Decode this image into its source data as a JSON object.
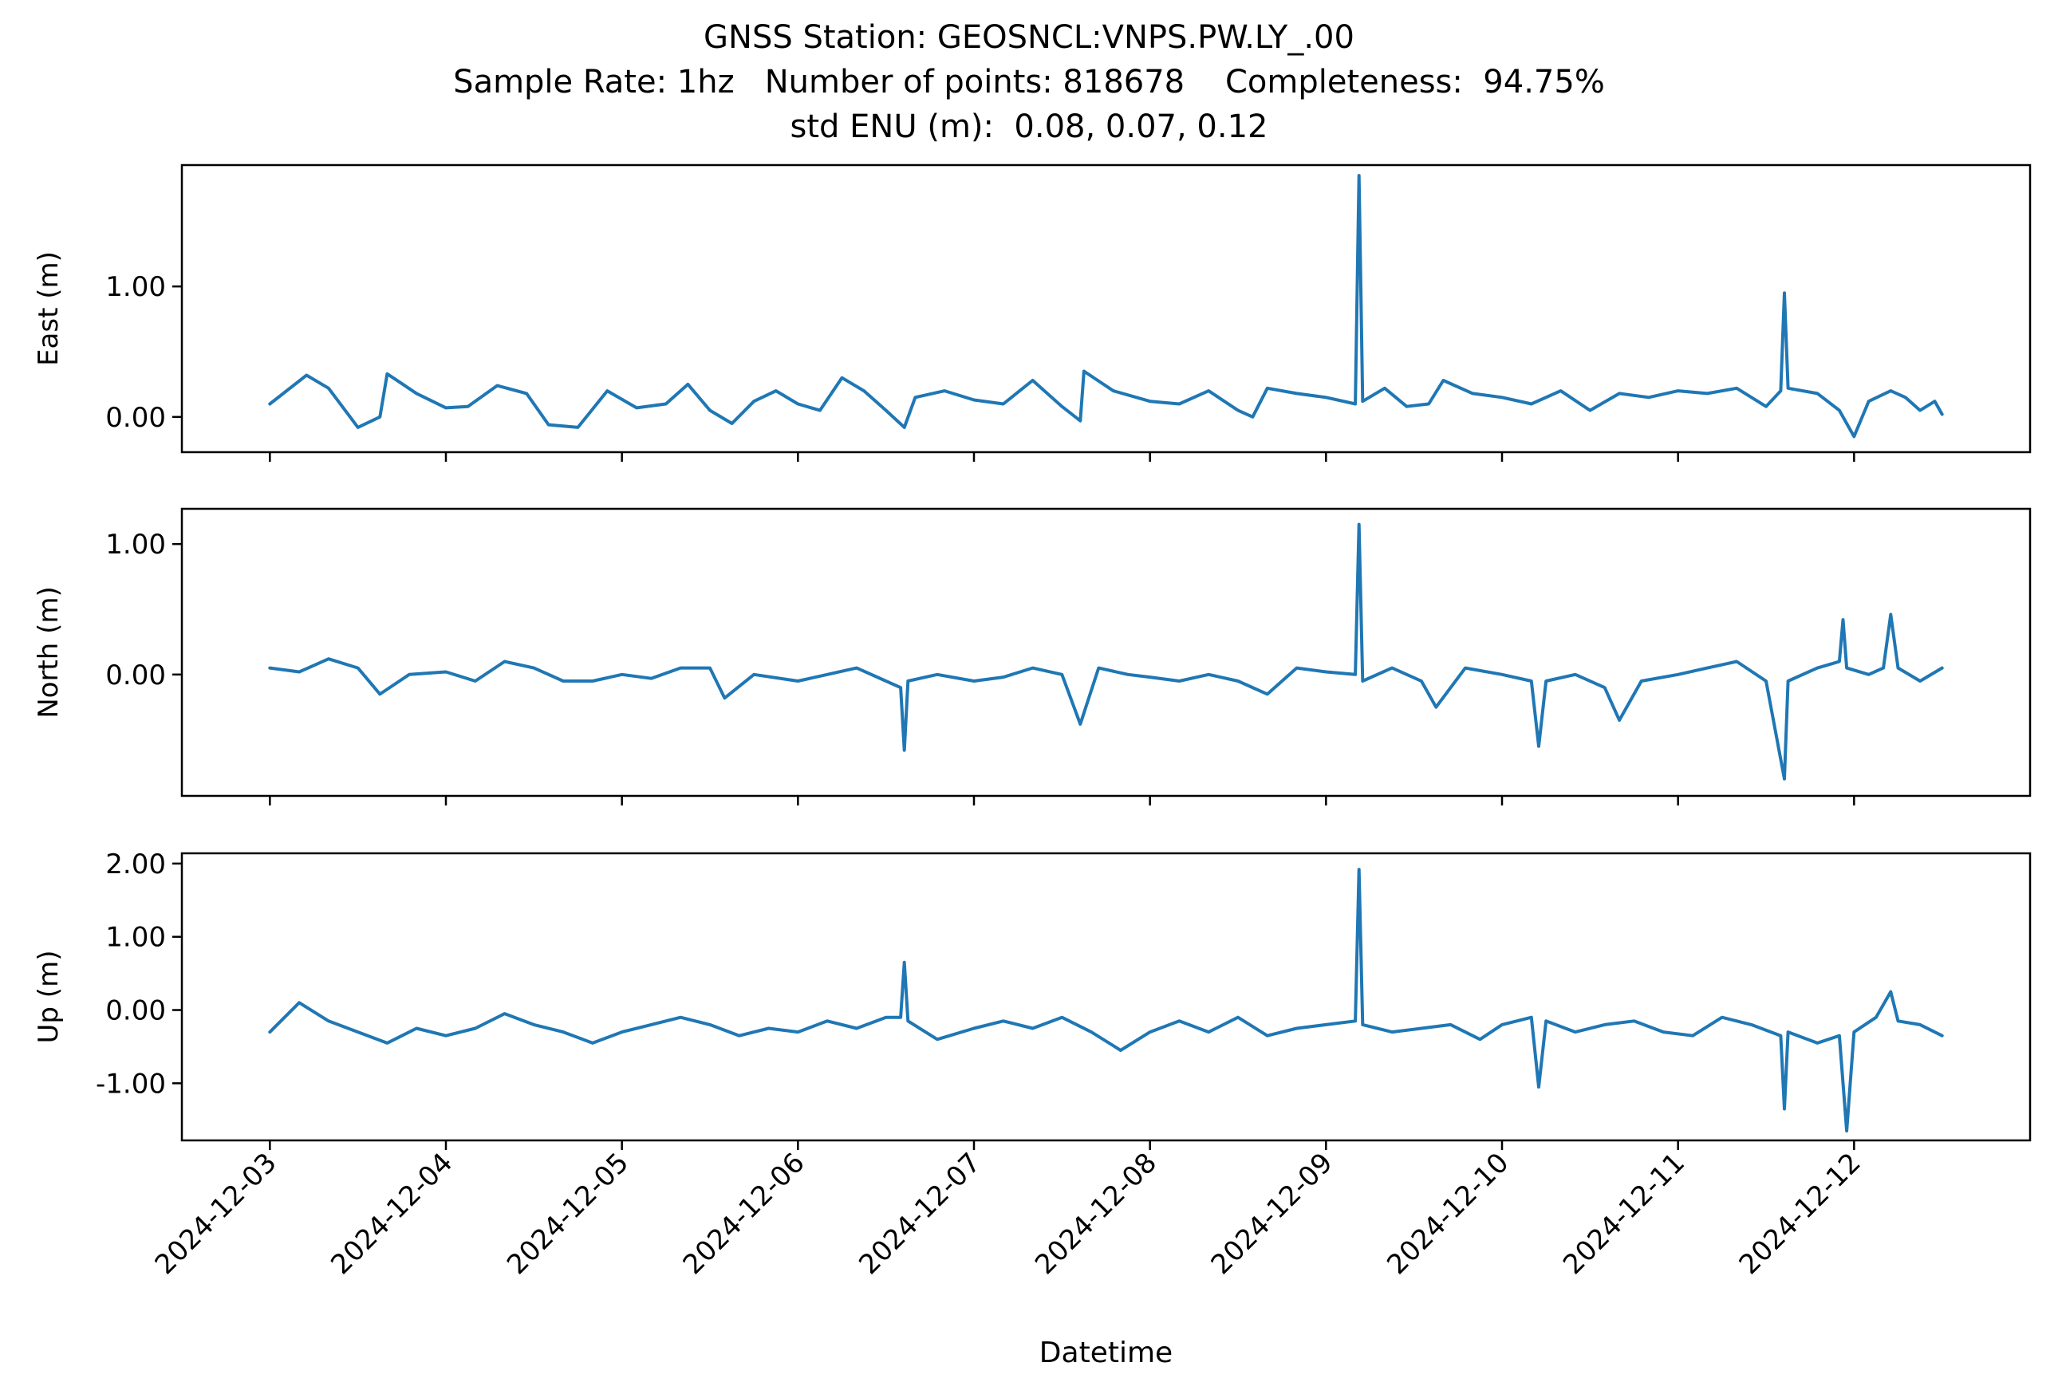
{
  "chart_data": {
    "type": "line",
    "title": "GNSS Station: GEOSNCL:VNPS.PW.LY_.00",
    "subtitle": "Sample Rate: 1hz   Number of points: 818678    Completeness:  94.75%",
    "subtitle2": "std ENU (m):  0.08, 0.07, 0.12",
    "xlabel": "Datetime",
    "x_ticks": [
      "2024-12-03",
      "2024-12-04",
      "2024-12-05",
      "2024-12-06",
      "2024-12-07",
      "2024-12-08",
      "2024-12-09",
      "2024-12-10",
      "2024-12-11",
      "2024-12-12"
    ],
    "xlim": [
      "2024-12-02T12:00",
      "2024-12-13T00:00"
    ],
    "line_color": "#1f77b4",
    "grid": false,
    "panels": [
      {
        "ylabel": "East (m)",
        "ylim": [
          -0.27,
          1.93
        ],
        "yticks": [
          0.0,
          1.0
        ],
        "yticklabels": [
          "0.00",
          "1.00"
        ],
        "series": [
          {
            "x": "2024-12-03T00:00",
            "y": 0.1
          },
          {
            "x": "2024-12-03T05:00",
            "y": 0.32
          },
          {
            "x": "2024-12-03T08:00",
            "y": 0.22
          },
          {
            "x": "2024-12-03T12:00",
            "y": -0.08
          },
          {
            "x": "2024-12-03T15:00",
            "y": 0.0
          },
          {
            "x": "2024-12-03T16:00",
            "y": 0.33
          },
          {
            "x": "2024-12-03T20:00",
            "y": 0.18
          },
          {
            "x": "2024-12-04T00:00",
            "y": 0.07
          },
          {
            "x": "2024-12-04T03:00",
            "y": 0.08
          },
          {
            "x": "2024-12-04T07:00",
            "y": 0.24
          },
          {
            "x": "2024-12-04T11:00",
            "y": 0.18
          },
          {
            "x": "2024-12-04T14:00",
            "y": -0.06
          },
          {
            "x": "2024-12-04T18:00",
            "y": -0.08
          },
          {
            "x": "2024-12-04T22:00",
            "y": 0.2
          },
          {
            "x": "2024-12-05T02:00",
            "y": 0.07
          },
          {
            "x": "2024-12-05T06:00",
            "y": 0.1
          },
          {
            "x": "2024-12-05T09:00",
            "y": 0.25
          },
          {
            "x": "2024-12-05T12:00",
            "y": 0.05
          },
          {
            "x": "2024-12-05T15:00",
            "y": -0.05
          },
          {
            "x": "2024-12-05T18:00",
            "y": 0.12
          },
          {
            "x": "2024-12-05T21:00",
            "y": 0.2
          },
          {
            "x": "2024-12-06T00:00",
            "y": 0.1
          },
          {
            "x": "2024-12-06T03:00",
            "y": 0.05
          },
          {
            "x": "2024-12-06T06:00",
            "y": 0.3
          },
          {
            "x": "2024-12-06T09:00",
            "y": 0.2
          },
          {
            "x": "2024-12-06T12:00",
            "y": 0.05
          },
          {
            "x": "2024-12-06T14:30",
            "y": -0.08
          },
          {
            "x": "2024-12-06T16:00",
            "y": 0.15
          },
          {
            "x": "2024-12-06T20:00",
            "y": 0.2
          },
          {
            "x": "2024-12-07T00:00",
            "y": 0.13
          },
          {
            "x": "2024-12-07T04:00",
            "y": 0.1
          },
          {
            "x": "2024-12-07T08:00",
            "y": 0.28
          },
          {
            "x": "2024-12-07T12:00",
            "y": 0.08
          },
          {
            "x": "2024-12-07T14:30",
            "y": -0.03
          },
          {
            "x": "2024-12-07T15:00",
            "y": 0.35
          },
          {
            "x": "2024-12-07T19:00",
            "y": 0.2
          },
          {
            "x": "2024-12-08T00:00",
            "y": 0.12
          },
          {
            "x": "2024-12-08T04:00",
            "y": 0.1
          },
          {
            "x": "2024-12-08T08:00",
            "y": 0.2
          },
          {
            "x": "2024-12-08T12:00",
            "y": 0.05
          },
          {
            "x": "2024-12-08T14:00",
            "y": 0.0
          },
          {
            "x": "2024-12-08T16:00",
            "y": 0.22
          },
          {
            "x": "2024-12-08T20:00",
            "y": 0.18
          },
          {
            "x": "2024-12-09T00:00",
            "y": 0.15
          },
          {
            "x": "2024-12-09T04:00",
            "y": 0.1
          },
          {
            "x": "2024-12-09T04:30",
            "y": 1.85
          },
          {
            "x": "2024-12-09T05:00",
            "y": 0.12
          },
          {
            "x": "2024-12-09T08:00",
            "y": 0.22
          },
          {
            "x": "2024-12-09T11:00",
            "y": 0.08
          },
          {
            "x": "2024-12-09T14:00",
            "y": 0.1
          },
          {
            "x": "2024-12-09T16:00",
            "y": 0.28
          },
          {
            "x": "2024-12-09T20:00",
            "y": 0.18
          },
          {
            "x": "2024-12-10T00:00",
            "y": 0.15
          },
          {
            "x": "2024-12-10T04:00",
            "y": 0.1
          },
          {
            "x": "2024-12-10T08:00",
            "y": 0.2
          },
          {
            "x": "2024-12-10T12:00",
            "y": 0.05
          },
          {
            "x": "2024-12-10T16:00",
            "y": 0.18
          },
          {
            "x": "2024-12-10T20:00",
            "y": 0.15
          },
          {
            "x": "2024-12-11T00:00",
            "y": 0.2
          },
          {
            "x": "2024-12-11T04:00",
            "y": 0.18
          },
          {
            "x": "2024-12-11T08:00",
            "y": 0.22
          },
          {
            "x": "2024-12-11T12:00",
            "y": 0.08
          },
          {
            "x": "2024-12-11T14:00",
            "y": 0.2
          },
          {
            "x": "2024-12-11T14:30",
            "y": 0.95
          },
          {
            "x": "2024-12-11T15:00",
            "y": 0.22
          },
          {
            "x": "2024-12-11T19:00",
            "y": 0.18
          },
          {
            "x": "2024-12-11T22:00",
            "y": 0.05
          },
          {
            "x": "2024-12-12T00:00",
            "y": -0.15
          },
          {
            "x": "2024-12-12T02:00",
            "y": 0.12
          },
          {
            "x": "2024-12-12T05:00",
            "y": 0.2
          },
          {
            "x": "2024-12-12T07:00",
            "y": 0.15
          },
          {
            "x": "2024-12-12T09:00",
            "y": 0.05
          },
          {
            "x": "2024-12-12T11:00",
            "y": 0.12
          },
          {
            "x": "2024-12-12T12:00",
            "y": 0.02
          }
        ]
      },
      {
        "ylabel": "North (m)",
        "ylim": [
          -0.93,
          1.27
        ],
        "yticks": [
          0.0,
          1.0
        ],
        "yticklabels": [
          "0.00",
          "1.00"
        ],
        "series": [
          {
            "x": "2024-12-03T00:00",
            "y": 0.05
          },
          {
            "x": "2024-12-03T04:00",
            "y": 0.02
          },
          {
            "x": "2024-12-03T08:00",
            "y": 0.12
          },
          {
            "x": "2024-12-03T12:00",
            "y": 0.05
          },
          {
            "x": "2024-12-03T15:00",
            "y": -0.15
          },
          {
            "x": "2024-12-03T19:00",
            "y": 0.0
          },
          {
            "x": "2024-12-04T00:00",
            "y": 0.02
          },
          {
            "x": "2024-12-04T04:00",
            "y": -0.05
          },
          {
            "x": "2024-12-04T08:00",
            "y": 0.1
          },
          {
            "x": "2024-12-04T12:00",
            "y": 0.05
          },
          {
            "x": "2024-12-04T16:00",
            "y": -0.05
          },
          {
            "x": "2024-12-04T20:00",
            "y": -0.05
          },
          {
            "x": "2024-12-05T00:00",
            "y": 0.0
          },
          {
            "x": "2024-12-05T04:00",
            "y": -0.03
          },
          {
            "x": "2024-12-05T08:00",
            "y": 0.05
          },
          {
            "x": "2024-12-05T12:00",
            "y": 0.05
          },
          {
            "x": "2024-12-05T14:00",
            "y": -0.18
          },
          {
            "x": "2024-12-05T18:00",
            "y": 0.0
          },
          {
            "x": "2024-12-06T00:00",
            "y": -0.05
          },
          {
            "x": "2024-12-06T04:00",
            "y": 0.0
          },
          {
            "x": "2024-12-06T08:00",
            "y": 0.05
          },
          {
            "x": "2024-12-06T12:00",
            "y": -0.05
          },
          {
            "x": "2024-12-06T14:00",
            "y": -0.1
          },
          {
            "x": "2024-12-06T14:30",
            "y": -0.58
          },
          {
            "x": "2024-12-06T15:00",
            "y": -0.05
          },
          {
            "x": "2024-12-06T19:00",
            "y": 0.0
          },
          {
            "x": "2024-12-07T00:00",
            "y": -0.05
          },
          {
            "x": "2024-12-07T04:00",
            "y": -0.02
          },
          {
            "x": "2024-12-07T08:00",
            "y": 0.05
          },
          {
            "x": "2024-12-07T12:00",
            "y": 0.0
          },
          {
            "x": "2024-12-07T14:30",
            "y": -0.38
          },
          {
            "x": "2024-12-07T17:00",
            "y": 0.05
          },
          {
            "x": "2024-12-07T21:00",
            "y": 0.0
          },
          {
            "x": "2024-12-08T00:00",
            "y": -0.02
          },
          {
            "x": "2024-12-08T04:00",
            "y": -0.05
          },
          {
            "x": "2024-12-08T08:00",
            "y": 0.0
          },
          {
            "x": "2024-12-08T12:00",
            "y": -0.05
          },
          {
            "x": "2024-12-08T16:00",
            "y": -0.15
          },
          {
            "x": "2024-12-08T20:00",
            "y": 0.05
          },
          {
            "x": "2024-12-09T00:00",
            "y": 0.02
          },
          {
            "x": "2024-12-09T04:00",
            "y": 0.0
          },
          {
            "x": "2024-12-09T04:30",
            "y": 1.15
          },
          {
            "x": "2024-12-09T05:00",
            "y": -0.05
          },
          {
            "x": "2024-12-09T09:00",
            "y": 0.05
          },
          {
            "x": "2024-12-09T13:00",
            "y": -0.05
          },
          {
            "x": "2024-12-09T15:00",
            "y": -0.25
          },
          {
            "x": "2024-12-09T19:00",
            "y": 0.05
          },
          {
            "x": "2024-12-10T00:00",
            "y": 0.0
          },
          {
            "x": "2024-12-10T04:00",
            "y": -0.05
          },
          {
            "x": "2024-12-10T05:00",
            "y": -0.55
          },
          {
            "x": "2024-12-10T06:00",
            "y": -0.05
          },
          {
            "x": "2024-12-10T10:00",
            "y": 0.0
          },
          {
            "x": "2024-12-10T14:00",
            "y": -0.1
          },
          {
            "x": "2024-12-10T16:00",
            "y": -0.35
          },
          {
            "x": "2024-12-10T19:00",
            "y": -0.05
          },
          {
            "x": "2024-12-11T00:00",
            "y": 0.0
          },
          {
            "x": "2024-12-11T04:00",
            "y": 0.05
          },
          {
            "x": "2024-12-11T08:00",
            "y": 0.1
          },
          {
            "x": "2024-12-11T12:00",
            "y": -0.05
          },
          {
            "x": "2024-12-11T14:30",
            "y": -0.8
          },
          {
            "x": "2024-12-11T15:00",
            "y": -0.05
          },
          {
            "x": "2024-12-11T19:00",
            "y": 0.05
          },
          {
            "x": "2024-12-11T22:00",
            "y": 0.1
          },
          {
            "x": "2024-12-11T22:30",
            "y": 0.42
          },
          {
            "x": "2024-12-11T23:00",
            "y": 0.05
          },
          {
            "x": "2024-12-12T02:00",
            "y": 0.0
          },
          {
            "x": "2024-12-12T04:00",
            "y": 0.05
          },
          {
            "x": "2024-12-12T05:00",
            "y": 0.46
          },
          {
            "x": "2024-12-12T06:00",
            "y": 0.05
          },
          {
            "x": "2024-12-12T09:00",
            "y": -0.05
          },
          {
            "x": "2024-12-12T12:00",
            "y": 0.05
          }
        ]
      },
      {
        "ylabel": "Up (m)",
        "ylim": [
          -1.78,
          2.14
        ],
        "yticks": [
          2.0,
          1.0,
          0.0,
          -1.0
        ],
        "yticklabels": [
          "2.00",
          "1.00",
          "0.00",
          "-1.00"
        ],
        "series": [
          {
            "x": "2024-12-03T00:00",
            "y": -0.3
          },
          {
            "x": "2024-12-03T04:00",
            "y": 0.1
          },
          {
            "x": "2024-12-03T08:00",
            "y": -0.15
          },
          {
            "x": "2024-12-03T12:00",
            "y": -0.3
          },
          {
            "x": "2024-12-03T16:00",
            "y": -0.45
          },
          {
            "x": "2024-12-03T20:00",
            "y": -0.25
          },
          {
            "x": "2024-12-04T00:00",
            "y": -0.35
          },
          {
            "x": "2024-12-04T04:00",
            "y": -0.25
          },
          {
            "x": "2024-12-04T08:00",
            "y": -0.05
          },
          {
            "x": "2024-12-04T12:00",
            "y": -0.2
          },
          {
            "x": "2024-12-04T16:00",
            "y": -0.3
          },
          {
            "x": "2024-12-04T20:00",
            "y": -0.45
          },
          {
            "x": "2024-12-05T00:00",
            "y": -0.3
          },
          {
            "x": "2024-12-05T04:00",
            "y": -0.2
          },
          {
            "x": "2024-12-05T08:00",
            "y": -0.1
          },
          {
            "x": "2024-12-05T12:00",
            "y": -0.2
          },
          {
            "x": "2024-12-05T16:00",
            "y": -0.35
          },
          {
            "x": "2024-12-05T20:00",
            "y": -0.25
          },
          {
            "x": "2024-12-06T00:00",
            "y": -0.3
          },
          {
            "x": "2024-12-06T04:00",
            "y": -0.15
          },
          {
            "x": "2024-12-06T08:00",
            "y": -0.25
          },
          {
            "x": "2024-12-06T12:00",
            "y": -0.1
          },
          {
            "x": "2024-12-06T14:00",
            "y": -0.1
          },
          {
            "x": "2024-12-06T14:30",
            "y": 0.65
          },
          {
            "x": "2024-12-06T15:00",
            "y": -0.15
          },
          {
            "x": "2024-12-06T19:00",
            "y": -0.4
          },
          {
            "x": "2024-12-07T00:00",
            "y": -0.25
          },
          {
            "x": "2024-12-07T04:00",
            "y": -0.15
          },
          {
            "x": "2024-12-07T08:00",
            "y": -0.25
          },
          {
            "x": "2024-12-07T12:00",
            "y": -0.1
          },
          {
            "x": "2024-12-07T16:00",
            "y": -0.3
          },
          {
            "x": "2024-12-07T20:00",
            "y": -0.55
          },
          {
            "x": "2024-12-08T00:00",
            "y": -0.3
          },
          {
            "x": "2024-12-08T04:00",
            "y": -0.15
          },
          {
            "x": "2024-12-08T08:00",
            "y": -0.3
          },
          {
            "x": "2024-12-08T12:00",
            "y": -0.1
          },
          {
            "x": "2024-12-08T16:00",
            "y": -0.35
          },
          {
            "x": "2024-12-08T20:00",
            "y": -0.25
          },
          {
            "x": "2024-12-09T00:00",
            "y": -0.2
          },
          {
            "x": "2024-12-09T04:00",
            "y": -0.15
          },
          {
            "x": "2024-12-09T04:30",
            "y": 1.92
          },
          {
            "x": "2024-12-09T05:00",
            "y": -0.2
          },
          {
            "x": "2024-12-09T09:00",
            "y": -0.3
          },
          {
            "x": "2024-12-09T13:00",
            "y": -0.25
          },
          {
            "x": "2024-12-09T17:00",
            "y": -0.2
          },
          {
            "x": "2024-12-09T21:00",
            "y": -0.4
          },
          {
            "x": "2024-12-10T00:00",
            "y": -0.2
          },
          {
            "x": "2024-12-10T04:00",
            "y": -0.1
          },
          {
            "x": "2024-12-10T05:00",
            "y": -1.05
          },
          {
            "x": "2024-12-10T06:00",
            "y": -0.15
          },
          {
            "x": "2024-12-10T10:00",
            "y": -0.3
          },
          {
            "x": "2024-12-10T14:00",
            "y": -0.2
          },
          {
            "x": "2024-12-10T18:00",
            "y": -0.15
          },
          {
            "x": "2024-12-10T22:00",
            "y": -0.3
          },
          {
            "x": "2024-12-11T02:00",
            "y": -0.35
          },
          {
            "x": "2024-12-11T06:00",
            "y": -0.1
          },
          {
            "x": "2024-12-11T10:00",
            "y": -0.2
          },
          {
            "x": "2024-12-11T14:00",
            "y": -0.35
          },
          {
            "x": "2024-12-11T14:30",
            "y": -1.35
          },
          {
            "x": "2024-12-11T15:00",
            "y": -0.3
          },
          {
            "x": "2024-12-11T19:00",
            "y": -0.45
          },
          {
            "x": "2024-12-11T22:00",
            "y": -0.35
          },
          {
            "x": "2024-12-11T23:00",
            "y": -1.65
          },
          {
            "x": "2024-12-12T00:00",
            "y": -0.3
          },
          {
            "x": "2024-12-12T03:00",
            "y": -0.1
          },
          {
            "x": "2024-12-12T05:00",
            "y": 0.25
          },
          {
            "x": "2024-12-12T06:00",
            "y": -0.15
          },
          {
            "x": "2024-12-12T09:00",
            "y": -0.2
          },
          {
            "x": "2024-12-12T12:00",
            "y": -0.35
          }
        ]
      }
    ]
  }
}
